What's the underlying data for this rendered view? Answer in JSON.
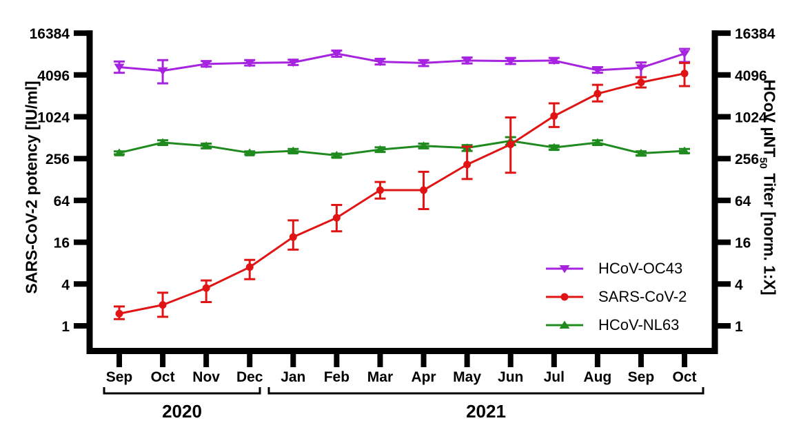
{
  "axes": {
    "left": {
      "label": "SARS-CoV-2 potency [IU/ml]"
    },
    "right": {
      "label_prefix": "HCoV µNT",
      "label_sub": "50",
      "label_suffix": " Titer [norm. 1:X]"
    }
  },
  "chart_data": {
    "type": "line",
    "title": "",
    "x_categories": [
      "Sep",
      "Oct",
      "Nov",
      "Dec",
      "Jan",
      "Feb",
      "Mar",
      "Apr",
      "May",
      "Jun",
      "Jul",
      "Aug",
      "Sep",
      "Oct"
    ],
    "x_year_groups": [
      {
        "label": "2020",
        "start": 0,
        "end": 3
      },
      {
        "label": "2021",
        "start": 4,
        "end": 13
      }
    ],
    "y_scale": "log",
    "log_base": 4,
    "ylim": [
      1,
      16384
    ],
    "y_ticks": [
      16384,
      4096,
      1024,
      256,
      64,
      16,
      4,
      1
    ],
    "ylabel_left": "SARS-CoV-2 potency [IU/ml]",
    "ylabel_right": "HCoV µNT50 Titer [norm. 1:X]",
    "grid": false,
    "legend_position": "inside-right-lower",
    "series": [
      {
        "name": "HCoV-OC43",
        "color": "#A623DF",
        "marker": "triangle-down",
        "values": [
          5300,
          4700,
          5900,
          6100,
          6200,
          8300,
          6350,
          6100,
          6600,
          6500,
          6600,
          4800,
          5200,
          8300
        ],
        "err_lo": [
          4400,
          3100,
          5400,
          5600,
          5700,
          7500,
          5800,
          5500,
          6000,
          5900,
          6100,
          4400,
          3800,
          6300
        ],
        "err_hi": [
          6400,
          6700,
          6500,
          6700,
          6800,
          9200,
          7000,
          6700,
          7300,
          7200,
          7200,
          5300,
          6200,
          9700
        ]
      },
      {
        "name": "SARS-CoV-2",
        "color": "#E01414",
        "marker": "circle",
        "values": [
          1.5,
          2.0,
          3.5,
          7,
          19,
          36,
          90,
          90,
          210,
          410,
          1050,
          2200,
          3200,
          4300
        ],
        "err_lo": [
          1.25,
          1.35,
          2.2,
          4.7,
          12.5,
          23,
          68,
          48,
          130,
          160,
          730,
          1700,
          2700,
          2830
        ],
        "err_hi": [
          1.9,
          3.0,
          4.5,
          8.9,
          33,
          55,
          118,
          165,
          380,
          1000,
          1600,
          2950,
          3800,
          6100
        ]
      },
      {
        "name": "HCoV-NL63",
        "color": "#1F8B1F",
        "marker": "triangle-up",
        "values": [
          310,
          435,
          390,
          310,
          330,
          285,
          345,
          390,
          365,
          460,
          370,
          435,
          305,
          330
        ],
        "err_lo": [
          295,
          405,
          360,
          295,
          310,
          268,
          320,
          360,
          330,
          400,
          345,
          405,
          285,
          308
        ],
        "err_hi": [
          325,
          470,
          420,
          325,
          352,
          302,
          372,
          420,
          400,
          520,
          396,
          468,
          326,
          352
        ]
      }
    ]
  }
}
